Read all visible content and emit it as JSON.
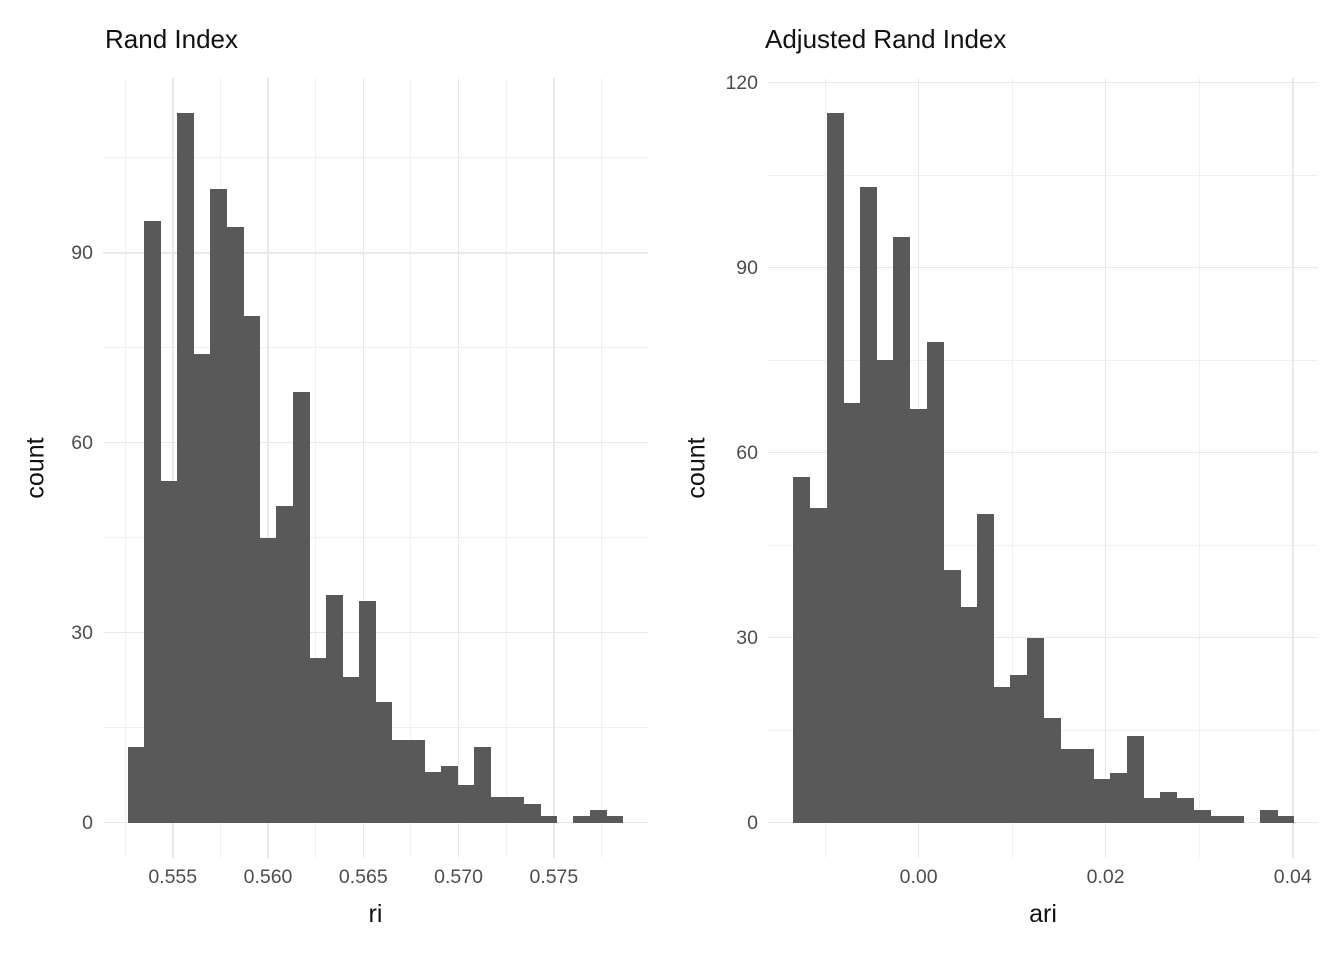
{
  "figure": {
    "background": "#ffffff"
  },
  "colors": {
    "bar_fill": "#595959",
    "grid_major": "#e9e9e9",
    "grid_minor": "#f0f0f0",
    "tick_label": "#4d4d4d",
    "title_text": "#111111"
  },
  "chart_data": [
    {
      "type": "bar",
      "subtype": "histogram",
      "title": "Rand Index",
      "xlabel": "ri",
      "ylabel": "count",
      "bin_start": 0.552644,
      "bin_width": 0.000866,
      "counts": [
        12,
        95,
        54,
        112,
        74,
        100,
        94,
        80,
        45,
        50,
        68,
        26,
        36,
        23,
        35,
        19,
        13,
        13,
        8,
        9,
        6,
        12,
        4,
        4,
        3,
        1,
        0,
        1,
        2,
        1
      ],
      "total_n": 1000,
      "x_ticks": [
        {
          "v": 0.555,
          "label": "0.555"
        },
        {
          "v": 0.56,
          "label": "0.560"
        },
        {
          "v": 0.565,
          "label": "0.565"
        },
        {
          "v": 0.57,
          "label": "0.570"
        },
        {
          "v": 0.575,
          "label": "0.575"
        }
      ],
      "x_minor": [
        0.5525,
        0.5575,
        0.5625,
        0.5675,
        0.5725,
        0.5775
      ],
      "y_ticks": [
        {
          "v": 0,
          "label": "0"
        },
        {
          "v": 30,
          "label": "30"
        },
        {
          "v": 60,
          "label": "60"
        },
        {
          "v": 90,
          "label": "90"
        }
      ],
      "y_minor": [
        15,
        45,
        75,
        105
      ],
      "xlim": [
        0.55134,
        0.57994
      ],
      "ylim": [
        -5.6,
        117.6
      ],
      "grid": true,
      "legend_position": "none"
    },
    {
      "type": "bar",
      "subtype": "histogram",
      "title": "Adjusted Rand Index",
      "xlabel": "ari",
      "ylabel": "count",
      "bin_start": -0.0134,
      "bin_width": 0.001784,
      "counts": [
        56,
        51,
        115,
        68,
        103,
        75,
        95,
        67,
        78,
        41,
        35,
        50,
        22,
        24,
        30,
        17,
        12,
        12,
        7,
        8,
        14,
        4,
        5,
        4,
        2,
        1,
        1,
        0,
        2,
        1
      ],
      "total_n": 1000,
      "x_ticks": [
        {
          "v": 0.0,
          "label": "0.00"
        },
        {
          "v": 0.02,
          "label": "0.02"
        },
        {
          "v": 0.04,
          "label": "0.04"
        }
      ],
      "x_minor": [
        -0.01,
        0.01,
        0.03
      ],
      "y_ticks": [
        {
          "v": 0,
          "label": "0"
        },
        {
          "v": 30,
          "label": "30"
        },
        {
          "v": 60,
          "label": "60"
        },
        {
          "v": 90,
          "label": "90"
        },
        {
          "v": 120,
          "label": "120"
        }
      ],
      "y_minor": [
        15,
        45,
        75,
        105
      ],
      "xlim": [
        -0.0161,
        0.0427
      ],
      "ylim": [
        -5.75,
        120.75
      ],
      "grid": true,
      "legend_position": "none"
    }
  ]
}
